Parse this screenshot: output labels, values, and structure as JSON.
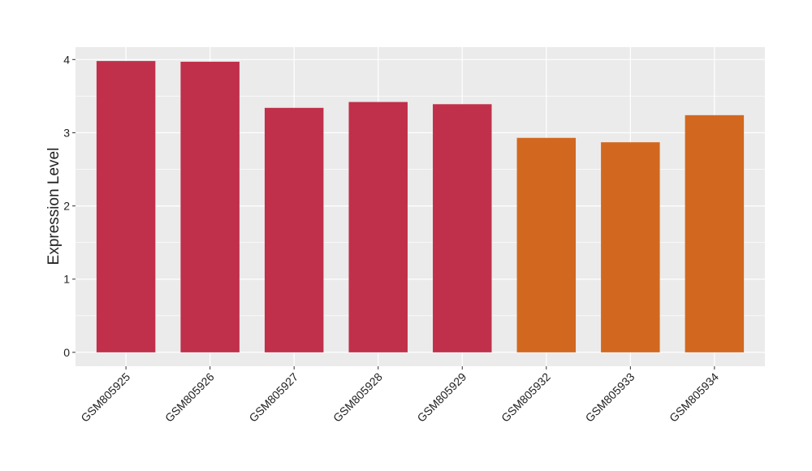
{
  "chart_data": {
    "type": "bar",
    "y_label": "Expression Level",
    "categories": [
      "GSM805925",
      "GSM805926",
      "GSM805927",
      "GSM805928",
      "GSM805929",
      "GSM805932",
      "GSM805933",
      "GSM805934"
    ],
    "values": [
      3.98,
      3.97,
      3.34,
      3.42,
      3.39,
      2.93,
      2.87,
      3.24
    ],
    "colors": [
      "#c0304a",
      "#c0304a",
      "#c0304a",
      "#c0304a",
      "#c0304a",
      "#d2681f",
      "#d2681f",
      "#d2681f"
    ],
    "ylim": [
      -0.19,
      4.17
    ],
    "yticks": [
      0,
      1,
      2,
      3,
      4
    ],
    "grid": true
  }
}
